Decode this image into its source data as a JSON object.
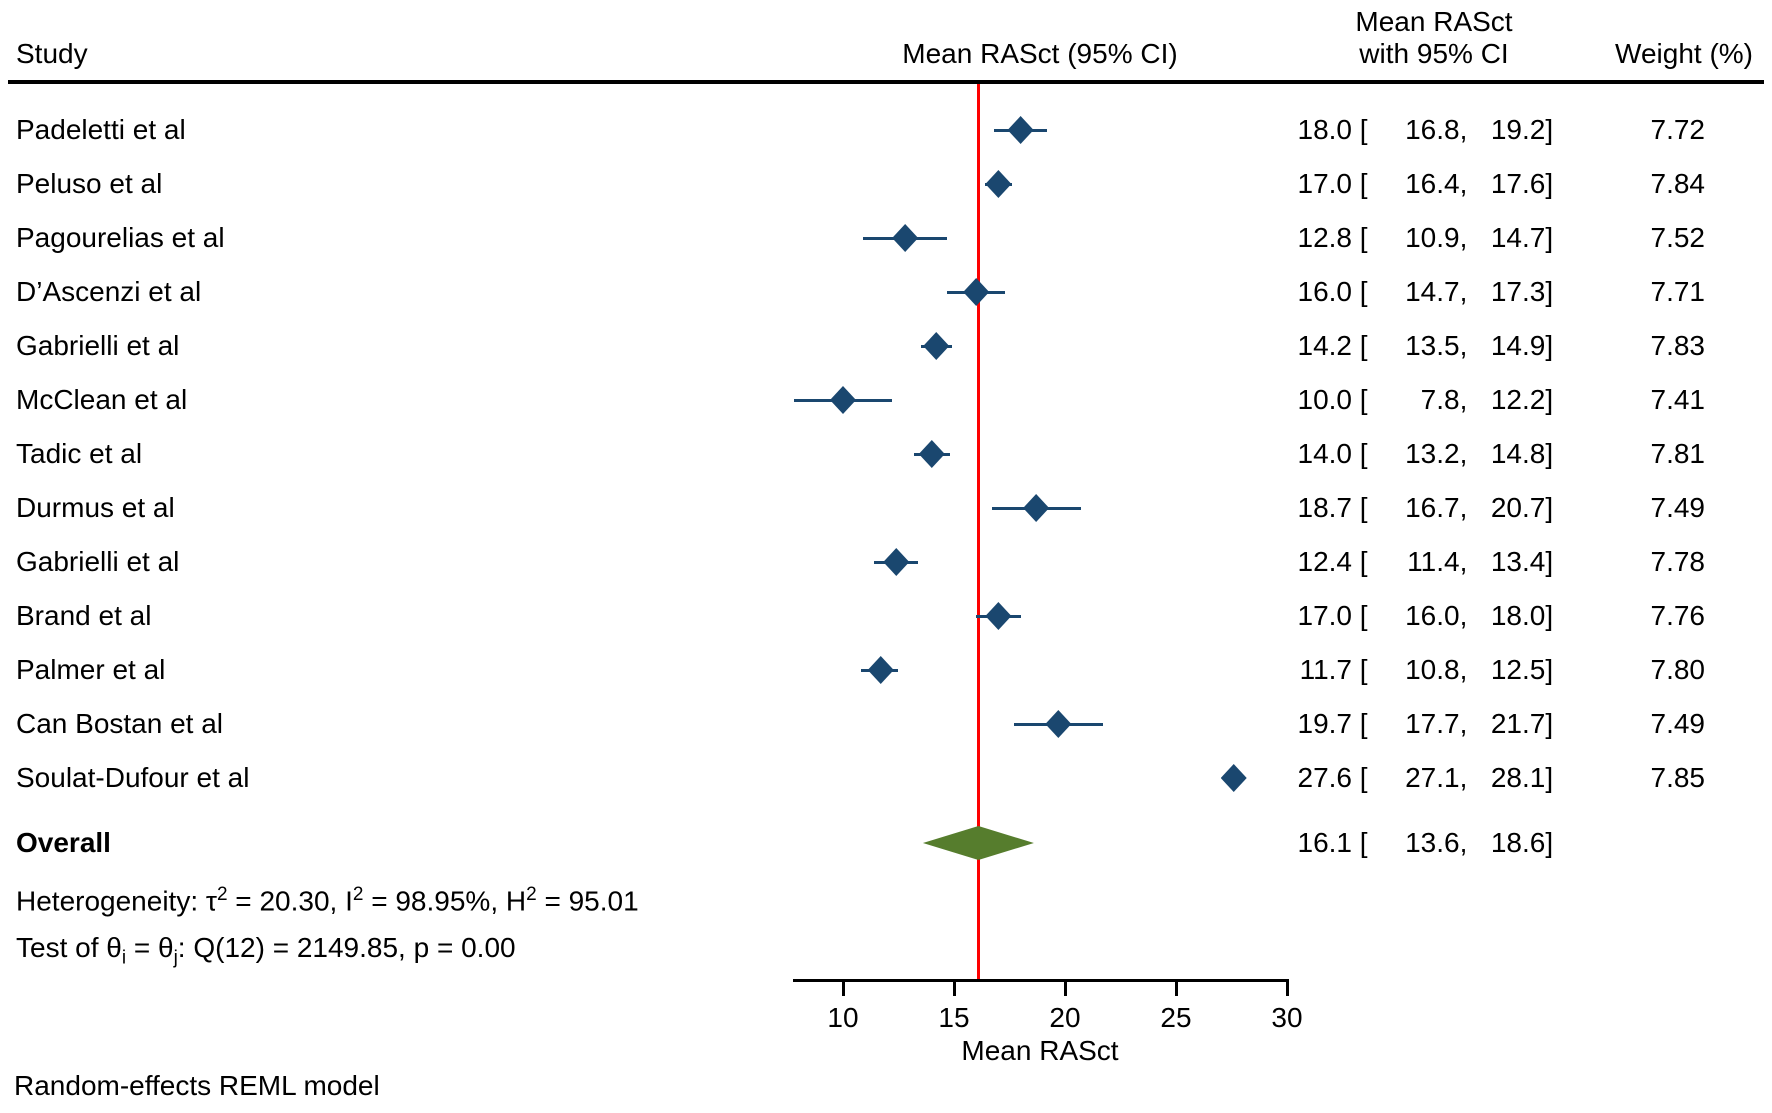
{
  "header": {
    "study": "Study",
    "effect_plot": "Mean RASct (95% CI)",
    "effect_line1": "Mean RASct",
    "effect_line2": "with 95% CI",
    "weight": "Weight (%)"
  },
  "format": {
    "open": " [",
    "comma": ",",
    "close": "]"
  },
  "chart_data": {
    "type": "scatter",
    "subtype": "forest-plot",
    "xlabel": "Mean RASct",
    "axis": {
      "ticks": [
        10,
        15,
        20,
        25,
        30
      ],
      "min": 7.8,
      "max": 30,
      "label": "Mean RASct",
      "ref_line": 16.1
    },
    "studies": [
      {
        "label": "Padeletti et al",
        "mean": 18.0,
        "lo": 16.8,
        "hi": 19.2,
        "display": {
          "est": "18.0",
          "lo": "16.8",
          "hi": "19.2",
          "weight": "7.72"
        }
      },
      {
        "label": "Peluso et al",
        "mean": 17.0,
        "lo": 16.4,
        "hi": 17.6,
        "display": {
          "est": "17.0",
          "lo": "16.4",
          "hi": "17.6",
          "weight": "7.84"
        }
      },
      {
        "label": "Pagourelias et al",
        "mean": 12.8,
        "lo": 10.9,
        "hi": 14.7,
        "display": {
          "est": "12.8",
          "lo": "10.9",
          "hi": "14.7",
          "weight": "7.52"
        }
      },
      {
        "label": "D’Ascenzi et al",
        "mean": 16.0,
        "lo": 14.7,
        "hi": 17.3,
        "display": {
          "est": "16.0",
          "lo": "14.7",
          "hi": "17.3",
          "weight": "7.71"
        }
      },
      {
        "label": "Gabrielli et al",
        "mean": 14.2,
        "lo": 13.5,
        "hi": 14.9,
        "display": {
          "est": "14.2",
          "lo": "13.5",
          "hi": "14.9",
          "weight": "7.83"
        }
      },
      {
        "label": "McClean et al",
        "mean": 10.0,
        "lo": 7.8,
        "hi": 12.2,
        "display": {
          "est": "10.0",
          "lo": "7.8",
          "hi": "12.2",
          "weight": "7.41"
        }
      },
      {
        "label": "Tadic et al",
        "mean": 14.0,
        "lo": 13.2,
        "hi": 14.8,
        "display": {
          "est": "14.0",
          "lo": "13.2",
          "hi": "14.8",
          "weight": "7.81"
        }
      },
      {
        "label": "Durmus et al",
        "mean": 18.7,
        "lo": 16.7,
        "hi": 20.7,
        "display": {
          "est": "18.7",
          "lo": "16.7",
          "hi": "20.7",
          "weight": "7.49"
        }
      },
      {
        "label": "Gabrielli et al",
        "mean": 12.4,
        "lo": 11.4,
        "hi": 13.4,
        "display": {
          "est": "12.4",
          "lo": "11.4",
          "hi": "13.4",
          "weight": "7.78"
        }
      },
      {
        "label": "Brand et al",
        "mean": 17.0,
        "lo": 16.0,
        "hi": 18.0,
        "display": {
          "est": "17.0",
          "lo": "16.0",
          "hi": "18.0",
          "weight": "7.76"
        }
      },
      {
        "label": "Palmer et al",
        "mean": 11.7,
        "lo": 10.8,
        "hi": 12.5,
        "display": {
          "est": "11.7",
          "lo": "10.8",
          "hi": "12.5",
          "weight": "7.80"
        }
      },
      {
        "label": "Can Bostan et al",
        "mean": 19.7,
        "lo": 17.7,
        "hi": 21.7,
        "display": {
          "est": "19.7",
          "lo": "17.7",
          "hi": "21.7",
          "weight": "7.49"
        }
      },
      {
        "label": "Soulat-Dufour et al",
        "mean": 27.6,
        "lo": 27.1,
        "hi": 28.1,
        "display": {
          "est": "27.6",
          "lo": "27.1",
          "hi": "28.1",
          "weight": "7.85"
        }
      }
    ],
    "overall": {
      "label": "Overall",
      "mean": 16.1,
      "lo": 13.6,
      "hi": 18.6,
      "display": {
        "est": "16.1",
        "lo": "13.6",
        "hi": "18.6"
      }
    },
    "stats": {
      "heterogeneity": [
        [
          "t",
          "Heterogeneity: τ"
        ],
        [
          "s",
          "2"
        ],
        [
          "t",
          " = 20.30, I"
        ],
        [
          "s",
          "2"
        ],
        [
          "t",
          " = 98.95%, H"
        ],
        [
          "s",
          "2"
        ],
        [
          "t",
          " = 95.01"
        ]
      ],
      "test": [
        [
          "t",
          "Test of θ"
        ],
        [
          "b",
          "i"
        ],
        [
          "t",
          " = θ"
        ],
        [
          "b",
          "j"
        ],
        [
          "t",
          ": Q(12) = 2149.85, p = 0.00"
        ]
      ]
    },
    "footer": "Random-effects REML model",
    "colors": {
      "marker": "#1a476f",
      "overall_diamond": "#567d2d",
      "ref_line": "#fe0000",
      "rule": "#000000"
    }
  }
}
